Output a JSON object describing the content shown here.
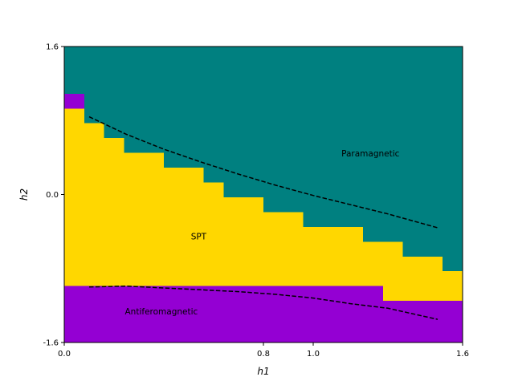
{
  "chart_data": {
    "type": "heatmap",
    "title": "",
    "xlabel": "h1",
    "ylabel": "h2",
    "xlim": [
      0.0,
      1.6
    ],
    "ylim": [
      -1.6,
      1.6
    ],
    "xticks": [
      {
        "value": 0.0,
        "label": "0.0"
      },
      {
        "value": 0.8,
        "label": "0.8"
      },
      {
        "value": 1.0,
        "label": "1.0"
      },
      {
        "value": 1.6,
        "label": "1.6"
      }
    ],
    "yticks": [
      {
        "value": -1.6,
        "label": "-1.6"
      },
      {
        "value": 0.0,
        "label": "0.0"
      },
      {
        "value": 1.6,
        "label": "1.6"
      }
    ],
    "grid": false,
    "colors": {
      "paramagnetic": "#008080",
      "spt": "#FFD700",
      "antiferomagnetic": "#9400D3",
      "boundary_line": "#000000"
    },
    "regions": [
      {
        "name": "Paramagnetic",
        "label": "Paramagnetic",
        "color_key": "paramagnetic",
        "label_at": [
          1.23,
          0.44
        ]
      },
      {
        "name": "SPT",
        "label": "SPT",
        "color_key": "spt",
        "label_at": [
          0.54,
          -0.46
        ]
      },
      {
        "name": "Antiferomagnetic",
        "label": "Antiferomagnetic",
        "color_key": "antiferomagnetic",
        "label_at": [
          0.39,
          -1.27
        ]
      }
    ],
    "phase_columns": {
      "description_keys": [
        "x_start",
        "x_end",
        "spt_bottom",
        "spt_top",
        "afm_top_band"
      ],
      "columns": [
        {
          "x_start": 0.0,
          "x_end": 0.08,
          "spt_bottom": -0.99,
          "spt_top": 0.93,
          "afm_band": [
            0.93,
            1.09
          ]
        },
        {
          "x_start": 0.08,
          "x_end": 0.16,
          "spt_bottom": -0.99,
          "spt_top": 0.77,
          "afm_band": null
        },
        {
          "x_start": 0.16,
          "x_end": 0.24,
          "spt_bottom": -0.99,
          "spt_top": 0.61,
          "afm_band": null
        },
        {
          "x_start": 0.24,
          "x_end": 0.4,
          "spt_bottom": -0.99,
          "spt_top": 0.45,
          "afm_band": null
        },
        {
          "x_start": 0.4,
          "x_end": 0.56,
          "spt_bottom": -0.99,
          "spt_top": 0.29,
          "afm_band": null
        },
        {
          "x_start": 0.56,
          "x_end": 0.64,
          "spt_bottom": -0.99,
          "spt_top": 0.13,
          "afm_band": null
        },
        {
          "x_start": 0.64,
          "x_end": 0.8,
          "spt_bottom": -0.99,
          "spt_top": -0.03,
          "afm_band": null
        },
        {
          "x_start": 0.8,
          "x_end": 0.96,
          "spt_bottom": -0.99,
          "spt_top": -0.19,
          "afm_band": null
        },
        {
          "x_start": 0.96,
          "x_end": 1.2,
          "spt_bottom": -0.99,
          "spt_top": -0.35,
          "afm_band": null
        },
        {
          "x_start": 1.2,
          "x_end": 1.28,
          "spt_bottom": -0.99,
          "spt_top": -0.51,
          "afm_band": null
        },
        {
          "x_start": 1.28,
          "x_end": 1.36,
          "spt_bottom": -1.15,
          "spt_top": -0.51,
          "afm_band": null
        },
        {
          "x_start": 1.36,
          "x_end": 1.52,
          "spt_bottom": -1.15,
          "spt_top": -0.67,
          "afm_band": null
        },
        {
          "x_start": 1.52,
          "x_end": 1.6,
          "spt_bottom": -1.15,
          "spt_top": -0.83,
          "afm_band": null
        }
      ]
    },
    "series": [
      {
        "style": "dashed",
        "x": [
          0.1,
          0.25,
          0.4,
          0.55,
          0.7,
          0.85,
          1.0,
          1.15,
          1.3,
          1.5
        ],
        "y": [
          0.84,
          0.65,
          0.49,
          0.35,
          0.22,
          0.1,
          -0.01,
          -0.11,
          -0.21,
          -0.36
        ]
      },
      {
        "style": "dashed",
        "x": [
          0.1,
          0.25,
          0.4,
          0.55,
          0.7,
          0.85,
          1.0,
          1.15,
          1.3,
          1.5
        ],
        "y": [
          -1.0,
          -0.99,
          -1.01,
          -1.03,
          -1.05,
          -1.08,
          -1.12,
          -1.18,
          -1.23,
          -1.35
        ]
      }
    ]
  }
}
